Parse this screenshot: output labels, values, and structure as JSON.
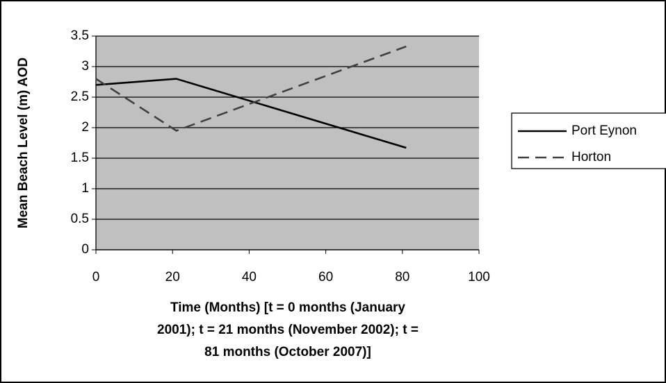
{
  "chart_data": {
    "type": "line",
    "xlabel": [
      "Time (Months) [t = 0 months (January",
      "2001); t = 21 months (November 2002); t =",
      "81 months (October 2007)]"
    ],
    "ylabel": "Mean Beach Level (m) AOD",
    "x": [
      0,
      21,
      81
    ],
    "series": [
      {
        "name": "Port Eynon",
        "color": "#000000",
        "dash": "solid",
        "values": [
          2.7,
          2.8,
          1.67
        ]
      },
      {
        "name": "Horton",
        "color": "#404040",
        "dash": "dashed",
        "values": [
          2.8,
          1.95,
          3.33
        ]
      }
    ],
    "xlim": [
      0,
      100
    ],
    "xticks": [
      0,
      20,
      40,
      60,
      80,
      100
    ],
    "ylim": [
      0,
      3.5
    ],
    "yticks": [
      0,
      0.5,
      1,
      1.5,
      2,
      2.5,
      3,
      3.5
    ],
    "grid": true,
    "plot_background": "#c0c0c0",
    "legend": "right"
  }
}
